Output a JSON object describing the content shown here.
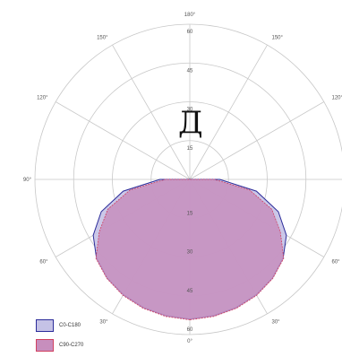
{
  "chart_data": {
    "type": "polar",
    "symbol": "Д",
    "angle_ticks": [
      {
        "deg": 180,
        "label": "180°"
      },
      {
        "deg": 150,
        "label": "150°"
      },
      {
        "deg": 120,
        "label": "120°"
      },
      {
        "deg": 90,
        "label": "90°"
      },
      {
        "deg": 60,
        "label": "60°"
      },
      {
        "deg": 30,
        "label": "30°"
      },
      {
        "deg": 0,
        "label": "0°"
      }
    ],
    "radial_ticks": [
      15,
      30,
      45,
      60
    ],
    "rlim": [
      0,
      60
    ],
    "angle_convention": "0 at bottom, 180 at top, measured from vertical",
    "series": [
      {
        "name": "C0-C180",
        "fill": "#c5c2e6",
        "stroke": "#2c2c9a",
        "angles": [
          0,
          10,
          20,
          30,
          40,
          50,
          60,
          70,
          80,
          90
        ],
        "left": [
          54,
          53.5,
          52.7,
          51.5,
          49.8,
          47.2,
          43.2,
          36.5,
          26.2,
          11.6
        ],
        "right": [
          54,
          53.5,
          52.7,
          51.5,
          49.8,
          47.2,
          43.2,
          36.5,
          26.2,
          11.6
        ]
      },
      {
        "name": "C90-C270",
        "fill": "#c78ebd",
        "stroke": "#d04060",
        "angles": [
          0,
          10,
          20,
          30,
          40,
          50,
          60,
          70,
          80,
          90
        ],
        "left": [
          54.3,
          53.8,
          53,
          51.8,
          50,
          47.5,
          40.5,
          33.8,
          23.5,
          9.5
        ],
        "right": [
          54.3,
          53.8,
          53,
          51.8,
          50,
          47.5,
          40.5,
          33.8,
          23.5,
          9.5
        ]
      }
    ]
  }
}
